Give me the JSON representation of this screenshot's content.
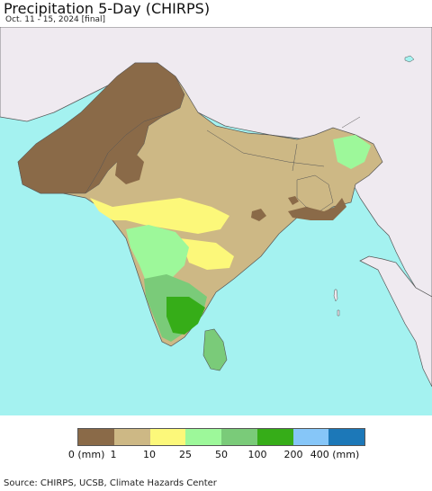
{
  "header": {
    "title": "Precipitation 5-Day (CHIRPS)",
    "subtitle": "Oct. 11 - 15, 2024 [final]"
  },
  "map": {
    "colors": {
      "ocean": "#a4f2f0",
      "outside": "#efeaf0",
      "border": "#555555"
    },
    "region": "South Asia"
  },
  "legend": {
    "bins": [
      {
        "color": "#8a6a48"
      },
      {
        "color": "#cdb885"
      },
      {
        "color": "#fcf87a"
      },
      {
        "color": "#9df89a"
      },
      {
        "color": "#7acb79"
      },
      {
        "color": "#36ad18"
      },
      {
        "color": "#86c6f8"
      },
      {
        "color": "#1c78b8"
      }
    ],
    "labels": [
      "0 (mm)",
      "1",
      "10",
      "25",
      "50",
      "100",
      "200",
      "400 (mm)"
    ]
  },
  "footer": {
    "source": "Source: CHIRPS, UCSB, Climate Hazards Center"
  }
}
